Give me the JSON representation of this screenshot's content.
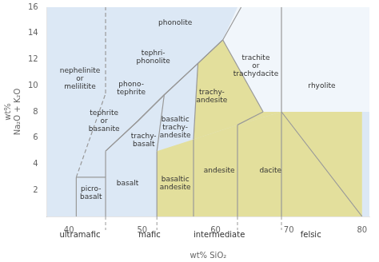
{
  "chart_data": {
    "type": "scatter",
    "xlabel": "wt% SiO₂",
    "ylabel": "wt%\nNa₂O + K₂O",
    "xlim": [
      37,
      81
    ],
    "ylim": [
      0,
      16
    ],
    "xticks": [
      40,
      50,
      60,
      70,
      80
    ],
    "yticks": [
      2,
      4,
      6,
      8,
      10,
      12,
      14,
      16
    ],
    "grid": false,
    "color": "#999999",
    "regions": [
      {
        "color": "#c5d8ee",
        "points": [
          [
            37,
            0
          ],
          [
            37,
            16
          ],
          [
            81,
            16
          ],
          [
            81,
            0
          ]
        ]
      },
      {
        "color": "#e8d960",
        "points": [
          [
            52,
            5
          ],
          [
            57,
            5.9
          ],
          [
            63,
            7
          ],
          [
            69,
            8
          ],
          [
            80,
            0
          ],
          [
            52,
            0
          ]
        ]
      },
      {
        "color": "#e8d960",
        "points": [
          [
            57,
            5.9
          ],
          [
            57.6,
            11.7
          ],
          [
            61,
            13.5
          ],
          [
            66.5,
            8
          ],
          [
            69,
            8
          ],
          [
            63,
            7
          ]
        ]
      },
      {
        "color": "#e8d960",
        "points": [
          [
            69,
            8
          ],
          [
            80,
            8
          ],
          [
            80,
            0
          ]
        ]
      },
      {
        "color": "#ffffff",
        "points": [
          [
            63,
            16
          ],
          [
            81,
            16
          ],
          [
            81,
            8
          ],
          [
            69,
            8
          ],
          [
            66.5,
            8
          ],
          [
            61,
            13.5
          ],
          [
            63,
            16
          ]
        ]
      }
    ],
    "boundaries": [
      {
        "x": [
          41,
          41
        ],
        "y": [
          0,
          3
        ],
        "line_style": "solid"
      },
      {
        "x": [
          41,
          45
        ],
        "y": [
          3,
          3
        ],
        "line_style": "solid"
      },
      {
        "x": [
          45,
          45
        ],
        "y": [
          0,
          5
        ],
        "line_style": "solid"
      },
      {
        "x": [
          52,
          52
        ],
        "y": [
          0,
          5
        ],
        "line_style": "solid"
      },
      {
        "x": [
          57,
          57
        ],
        "y": [
          0,
          5.9
        ],
        "line_style": "solid"
      },
      {
        "x": [
          63,
          63
        ],
        "y": [
          0,
          7
        ],
        "line_style": "solid"
      },
      {
        "x": [
          69,
          69
        ],
        "y": [
          0,
          8
        ],
        "line_style": "solid"
      },
      {
        "x": [
          69,
          80
        ],
        "y": [
          8,
          0
        ],
        "line_style": "solid"
      },
      {
        "x": [
          45,
          49.4,
          53,
          57.6,
          61,
          63.5
        ],
        "y": [
          5,
          7.3,
          9.3,
          11.7,
          13.5,
          16
        ],
        "line_style": "solid"
      },
      {
        "x": [
          41,
          45
        ],
        "y": [
          3,
          9.4
        ],
        "line_style": "dashed"
      },
      {
        "x": [
          45,
          45
        ],
        "y": [
          9.4,
          16
        ],
        "line_style": "dashed"
      },
      {
        "x": [
          45,
          49.4
        ],
        "y": [
          5,
          7.3
        ],
        "line_style": "solid"
      },
      {
        "x": [
          49.4,
          53
        ],
        "y": [
          7.3,
          9.3
        ],
        "line_style": "solid"
      },
      {
        "x": [
          53,
          57.6
        ],
        "y": [
          9.3,
          11.7
        ],
        "line_style": "solid"
      },
      {
        "x": [
          57.6,
          61
        ],
        "y": [
          11.7,
          13.5
        ],
        "line_style": "solid"
      },
      {
        "x": [
          52,
          53
        ],
        "y": [
          5,
          9.3
        ],
        "line_style": "solid"
      },
      {
        "x": [
          57,
          57.6
        ],
        "y": [
          5.9,
          11.7
        ],
        "line_style": "solid"
      },
      {
        "x": [
          63,
          66.5
        ],
        "y": [
          7,
          8
        ],
        "line_style": "solid"
      },
      {
        "x": [
          66.5,
          61
        ],
        "y": [
          8,
          13.5
        ],
        "line_style": "solid"
      },
      {
        "x": [
          69,
          69
        ],
        "y": [
          8,
          16
        ],
        "line_style": "solid"
      }
    ],
    "annotations": [
      {
        "text": "phonolite",
        "x": 54.5,
        "y": 14.8
      },
      {
        "text": "tephri-\nphonolite",
        "x": 51.5,
        "y": 12.2
      },
      {
        "text": "phono-\ntephrite",
        "x": 48.5,
        "y": 9.8
      },
      {
        "text": "tephrite\nor\nbasanite",
        "x": 44.8,
        "y": 7.3
      },
      {
        "text": "trachy-\nbasalt",
        "x": 50.2,
        "y": 5.8
      },
      {
        "text": "basaltic\ntrachy-\nandesite",
        "x": 54.5,
        "y": 6.8
      },
      {
        "text": "trachy-\nandesite",
        "x": 59.5,
        "y": 9.2
      },
      {
        "text": "trachite\nor\ntrachydacite",
        "x": 65.5,
        "y": 11.5
      },
      {
        "text": "rhyolite",
        "x": 74.5,
        "y": 10.0
      },
      {
        "text": "nephelinite\nor\nmelilitite",
        "x": 41.5,
        "y": 10.5
      },
      {
        "text": "picro-\nbasalt",
        "x": 43.0,
        "y": 1.8
      },
      {
        "text": "basalt",
        "x": 48.0,
        "y": 2.5
      },
      {
        "text": "basaltic\nandesite",
        "x": 54.5,
        "y": 2.5
      },
      {
        "text": "andesite",
        "x": 60.5,
        "y": 3.5
      },
      {
        "text": "dacite",
        "x": 67.5,
        "y": 3.5
      }
    ],
    "bottom_labels": [
      {
        "text": "ultramafic",
        "x": 41.5
      },
      {
        "text": "mafic",
        "x": 51.0
      },
      {
        "text": "intermediate",
        "x": 60.5
      },
      {
        "text": "felsic",
        "x": 73.0
      }
    ],
    "category_dividers": [
      45.0,
      52.0,
      63.0,
      69.0
    ]
  }
}
